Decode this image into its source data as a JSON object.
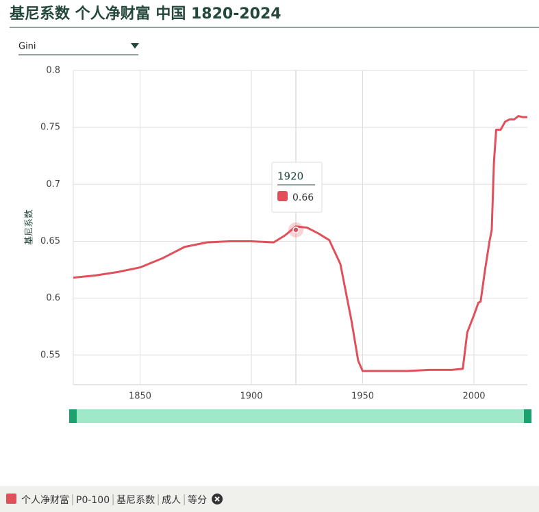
{
  "chart_data": {
    "type": "line",
    "title": "基尼系数 个人净财富 中国 1820-2024",
    "dropdown": "Gini",
    "ylabel": "基尼系数",
    "x": [
      1820,
      1830,
      1840,
      1850,
      1860,
      1870,
      1880,
      1890,
      1900,
      1910,
      1915,
      1920,
      1925,
      1930,
      1935,
      1940,
      1945,
      1948,
      1950,
      1960,
      1970,
      1980,
      1990,
      1995,
      1997,
      2000,
      2002,
      2003,
      2005,
      2007,
      2008,
      2009,
      2010,
      2012,
      2014,
      2016,
      2018,
      2020,
      2022,
      2024
    ],
    "series": [
      {
        "name": "个人净财富",
        "color": "#e0505a",
        "values": [
          0.618,
          0.62,
          0.623,
          0.627,
          0.635,
          0.645,
          0.649,
          0.65,
          0.65,
          0.649,
          0.655,
          0.663,
          0.662,
          0.657,
          0.651,
          0.63,
          0.58,
          0.545,
          0.536,
          0.536,
          0.536,
          0.537,
          0.537,
          0.538,
          0.57,
          0.585,
          0.596,
          0.597,
          0.625,
          0.65,
          0.66,
          0.72,
          0.748,
          0.748,
          0.755,
          0.757,
          0.757,
          0.76,
          0.759,
          0.759
        ]
      }
    ],
    "xlim": [
      1820,
      2024
    ],
    "xticks": [
      1850,
      1900,
      1950,
      2000
    ],
    "ylim": [
      0.524,
      0.8
    ],
    "yticks": [
      0.55,
      0.6,
      0.65,
      0.7,
      0.75,
      0.8
    ],
    "grid": true,
    "tooltip": {
      "x": 1920,
      "value": 0.66
    },
    "legend": [
      "个人净财富",
      "P0-100",
      "基尼系数",
      "成人",
      "等分"
    ]
  }
}
